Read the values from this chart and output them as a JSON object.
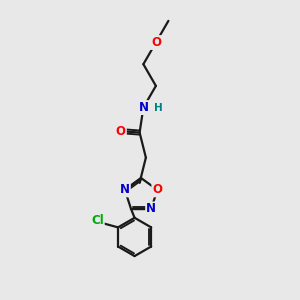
{
  "bg_color": "#e8e8e8",
  "bond_color": "#1a1a1a",
  "bond_width": 1.6,
  "atom_colors": {
    "O": "#ff0000",
    "N": "#0000cc",
    "Cl": "#00aa00",
    "H": "#008080",
    "C": "#1a1a1a"
  },
  "font_size_atom": 8.5,
  "font_size_h": 7.5,
  "figsize": [
    3.0,
    3.0
  ],
  "dpi": 100,
  "xlim": [
    0,
    10
  ],
  "ylim": [
    0,
    10
  ]
}
